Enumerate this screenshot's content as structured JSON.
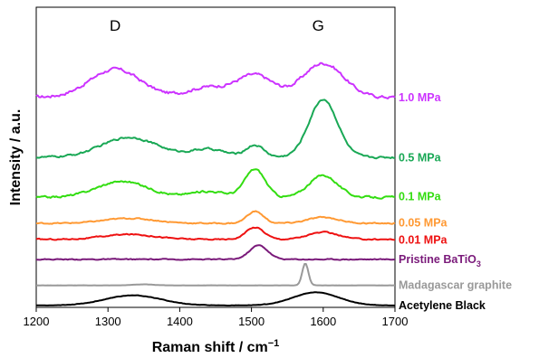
{
  "chart_data": {
    "type": "line",
    "title": "",
    "xlabel": "Raman shift / cm",
    "xlabel_exponent": "−1",
    "ylabel": "Intensity / a.u.",
    "xlim": [
      1200,
      1700
    ],
    "xticks": [
      "1200",
      "1300",
      "1400",
      "1500",
      "1600",
      "1700"
    ],
    "band_labels": [
      {
        "text": "D",
        "x": 1310
      },
      {
        "text": "G",
        "x": 1593
      }
    ],
    "grid": false,
    "legend": "labels at right end of each trace",
    "series": [
      {
        "name": "1.0 MPa",
        "color": "#cc33ff",
        "offset": 210,
        "shape": {
          "base": 0,
          "noise": 2.8,
          "peaks": [
            [
              1310,
              28,
              50
            ],
            [
              1505,
              22,
              35
            ],
            [
              1600,
              34,
              40
            ],
            [
              1440,
              10,
              40
            ]
          ]
        }
      },
      {
        "name": "0.5 MPa",
        "color": "#19a855",
        "offset": 150,
        "shape": {
          "base": 0,
          "noise": 1.8,
          "peaks": [
            [
              1330,
              20,
              55
            ],
            [
              1440,
              8,
              35
            ],
            [
              1505,
              12,
              18
            ],
            [
              1600,
              58,
              28
            ]
          ]
        }
      },
      {
        "name": "0.1 MPa",
        "color": "#33dd11",
        "offset": 110,
        "shape": {
          "base": 0,
          "noise": 1.8,
          "peaks": [
            [
              1320,
              16,
              50
            ],
            [
              1440,
              6,
              35
            ],
            [
              1505,
              28,
              20
            ],
            [
              1600,
              22,
              28
            ]
          ]
        }
      },
      {
        "name": "0.05 MPa",
        "color": "#ff9933",
        "offset": 84,
        "shape": {
          "base": 0,
          "noise": 1.1,
          "peaks": [
            [
              1330,
              5,
              50
            ],
            [
              1505,
              12,
              16
            ],
            [
              1600,
              6,
              30
            ]
          ]
        }
      },
      {
        "name": "0.01 MPa",
        "color": "#ee1111",
        "offset": 68,
        "shape": {
          "base": 0,
          "noise": 1.1,
          "peaks": [
            [
              1330,
              5,
              50
            ],
            [
              1505,
              12,
              18
            ],
            [
              1600,
              7,
              30
            ]
          ]
        }
      },
      {
        "name": "Pristine BaTiO",
        "name_sub": "3",
        "color": "#7a1a7a",
        "offset": 48,
        "shape": {
          "base": 0,
          "noise": 0.9,
          "peaks": [
            [
              1510,
              14,
              18
            ]
          ]
        }
      },
      {
        "name": "Madagascar graphite",
        "color": "#999999",
        "offset": 22,
        "shape": {
          "base": 0,
          "noise": 0.15,
          "peaks": [
            [
              1575,
              22,
              6
            ],
            [
              1350,
              1,
              20
            ]
          ]
        }
      },
      {
        "name": "Acetylene Black",
        "color": "#000000",
        "offset": 2,
        "shape": {
          "base": 0,
          "noise": 0.4,
          "peaks": [
            [
              1335,
              10,
              55
            ],
            [
              1590,
              13,
              45
            ]
          ]
        }
      }
    ]
  }
}
